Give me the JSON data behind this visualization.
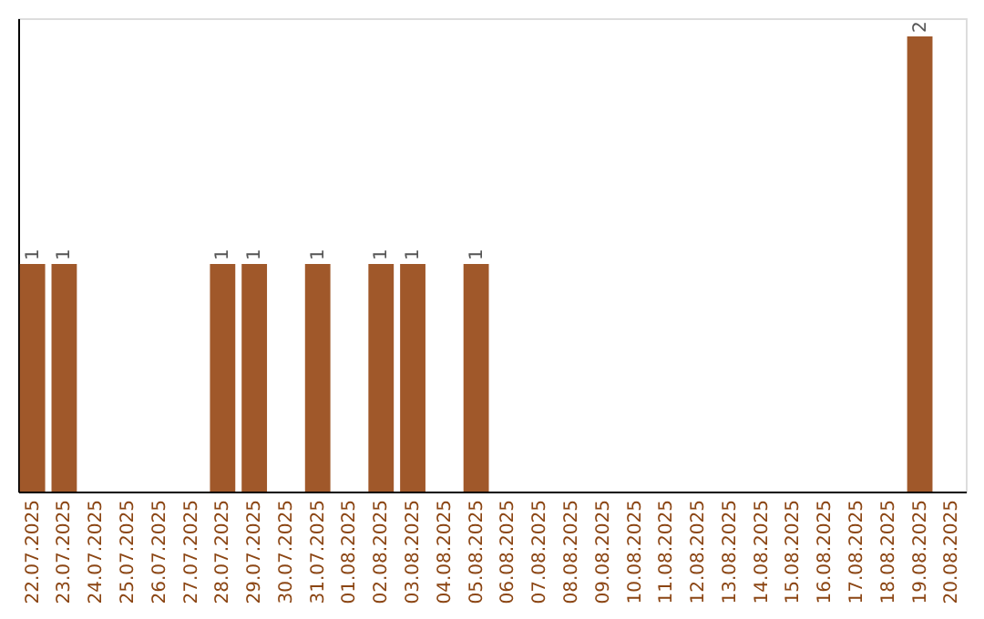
{
  "chart_data": {
    "type": "bar",
    "categories": [
      "22.07.2025",
      "23.07.2025",
      "24.07.2025",
      "25.07.2025",
      "26.07.2025",
      "27.07.2025",
      "28.07.2025",
      "29.07.2025",
      "30.07.2025",
      "31.07.2025",
      "01.08.2025",
      "02.08.2025",
      "03.08.2025",
      "04.08.2025",
      "05.08.2025",
      "06.08.2025",
      "07.08.2025",
      "08.08.2025",
      "09.08.2025",
      "10.08.2025",
      "11.08.2025",
      "12.08.2025",
      "13.08.2025",
      "14.08.2025",
      "15.08.2025",
      "16.08.2025",
      "17.08.2025",
      "18.08.2025",
      "19.08.2025",
      "20.08.2025"
    ],
    "values": [
      1,
      1,
      null,
      null,
      null,
      null,
      1,
      1,
      null,
      1,
      null,
      1,
      1,
      null,
      1,
      null,
      null,
      null,
      null,
      null,
      null,
      null,
      null,
      null,
      null,
      null,
      null,
      null,
      2,
      null
    ],
    "color": "#a0582a",
    "ylim": [
      0,
      2.08
    ],
    "data_labels": true,
    "tick_labels": "x"
  }
}
